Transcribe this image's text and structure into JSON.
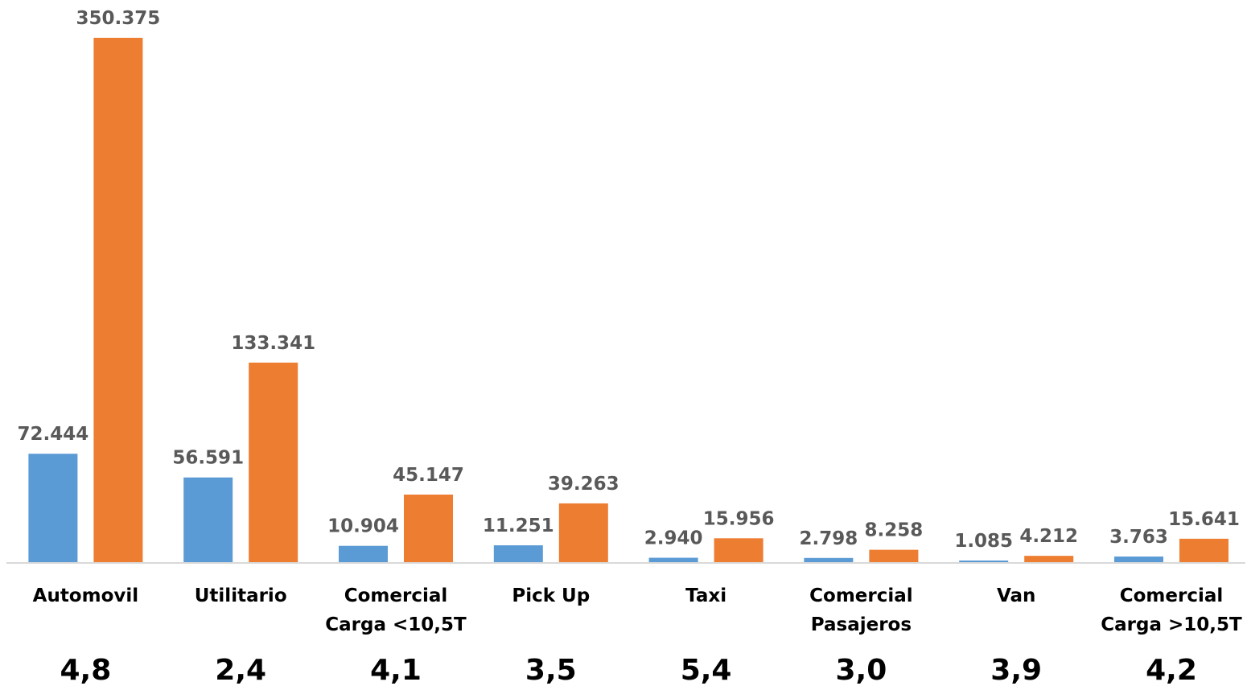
{
  "chart_data": {
    "type": "bar",
    "categories": [
      [
        "Automovil"
      ],
      [
        "Utilitario"
      ],
      [
        "Comercial",
        "Carga <10,5T"
      ],
      [
        "Pick Up"
      ],
      [
        "Taxi"
      ],
      [
        "Comercial",
        "Pasajeros"
      ],
      [
        "Van"
      ],
      [
        "Comercial",
        "Carga >10,5T"
      ]
    ],
    "series": [
      {
        "color": "#5B9BD5",
        "values": [
          72444,
          56591,
          10904,
          11251,
          2940,
          2798,
          1085,
          3763
        ],
        "labels": [
          "72.444",
          "56.591",
          "10.904",
          "11.251",
          "2.940",
          "2.798",
          "1.085",
          "3.763"
        ]
      },
      {
        "color": "#ED7D31",
        "values": [
          350375,
          133341,
          45147,
          39263,
          15956,
          8258,
          4212,
          15641
        ],
        "labels": [
          "350.375",
          "133.341",
          "45.147",
          "39.263",
          "15.956",
          "8.258",
          "4.212",
          "15.641"
        ]
      }
    ],
    "ratios": [
      "4,8",
      "2,4",
      "4,1",
      "3,5",
      "5,4",
      "3,0",
      "3,9",
      "4,2"
    ],
    "ylim": [
      0,
      350375
    ],
    "grid": false,
    "legend": "none",
    "title": "",
    "xlabel": "",
    "ylabel": ""
  }
}
